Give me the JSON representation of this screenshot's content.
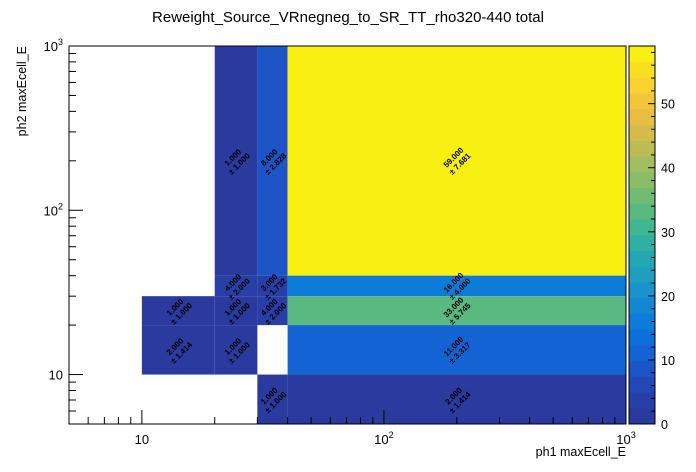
{
  "chart_data": {
    "type": "heatmap",
    "title": "Reweight_Source_VRnegneg_to_SR_TT_rho320-440 total",
    "xlabel": "ph1 maxEcell_E",
    "ylabel": "ph2 maxEcell_E",
    "x_scale": "log",
    "y_scale": "log",
    "xlim": [
      5,
      1000
    ],
    "ylim": [
      5,
      1000
    ],
    "x_ticks": [
      {
        "value": 10,
        "label": "10"
      },
      {
        "value": 100,
        "label": "10^2"
      },
      {
        "value": 1000,
        "label": "10^3"
      }
    ],
    "y_ticks": [
      {
        "value": 10,
        "label": "10"
      },
      {
        "value": 100,
        "label": "10^2"
      },
      {
        "value": 1000,
        "label": "10^3"
      }
    ],
    "z_range": [
      0,
      59
    ],
    "z_ticks": [
      0,
      10,
      20,
      30,
      40,
      50
    ],
    "palette": [
      "#2a3a9e",
      "#283fa8",
      "#2348b8",
      "#1d55c8",
      "#1463d4",
      "#0d70da",
      "#0c7cd8",
      "#1287d4",
      "#1a93cc",
      "#1f9ec0",
      "#23a8b3",
      "#2eb0a2",
      "#40b691",
      "#58b981",
      "#71bb72",
      "#8abd67",
      "#a2bd5d",
      "#bcbc55",
      "#d4bb4c",
      "#e7bd43",
      "#f3c53a",
      "#f8d22d",
      "#f8e01f",
      "#f7f010"
    ],
    "cells": [
      {
        "x0": 20,
        "x1": 30,
        "y0": 40,
        "y1": 1000,
        "value": 1,
        "label": "1.000",
        "err": "± 1.000"
      },
      {
        "x0": 30,
        "x1": 40,
        "y0": 40,
        "y1": 1000,
        "value": 8,
        "label": "8.000",
        "err": "± 2.828"
      },
      {
        "x0": 40,
        "x1": 1000,
        "y0": 40,
        "y1": 1000,
        "value": 59,
        "label": "59.000",
        "err": "± 7.681"
      },
      {
        "x0": 20,
        "x1": 30,
        "y0": 30,
        "y1": 40,
        "value": 4,
        "label": "4.000",
        "err": "± 2.000"
      },
      {
        "x0": 30,
        "x1": 40,
        "y0": 30,
        "y1": 40,
        "value": 3,
        "label": "3.000",
        "err": "± 1.732"
      },
      {
        "x0": 40,
        "x1": 1000,
        "y0": 30,
        "y1": 40,
        "value": 16,
        "label": "16.000",
        "err": "± 4.000"
      },
      {
        "x0": 10,
        "x1": 20,
        "y0": 20,
        "y1": 30,
        "value": 1,
        "label": "1.000",
        "err": "± 1.000"
      },
      {
        "x0": 20,
        "x1": 30,
        "y0": 20,
        "y1": 30,
        "value": 1,
        "label": "1.000",
        "err": "± 1.000"
      },
      {
        "x0": 30,
        "x1": 40,
        "y0": 20,
        "y1": 30,
        "value": 4,
        "label": "4.000",
        "err": "± 2.000"
      },
      {
        "x0": 40,
        "x1": 1000,
        "y0": 20,
        "y1": 30,
        "value": 33,
        "label": "33.000",
        "err": "± 5.745"
      },
      {
        "x0": 10,
        "x1": 20,
        "y0": 10,
        "y1": 20,
        "value": 2,
        "label": "2.000",
        "err": "± 1.414"
      },
      {
        "x0": 20,
        "x1": 30,
        "y0": 10,
        "y1": 20,
        "value": 1,
        "label": "1.000",
        "err": "± 1.000"
      },
      {
        "x0": 40,
        "x1": 1000,
        "y0": 10,
        "y1": 20,
        "value": 11,
        "label": "11.000",
        "err": "± 3.317"
      },
      {
        "x0": 30,
        "x1": 40,
        "y0": 5,
        "y1": 10,
        "value": 1,
        "label": "1.000",
        "err": "± 1.000"
      },
      {
        "x0": 40,
        "x1": 1000,
        "y0": 5,
        "y1": 10,
        "value": 2,
        "label": "2.000",
        "err": "± 1.414"
      }
    ]
  }
}
